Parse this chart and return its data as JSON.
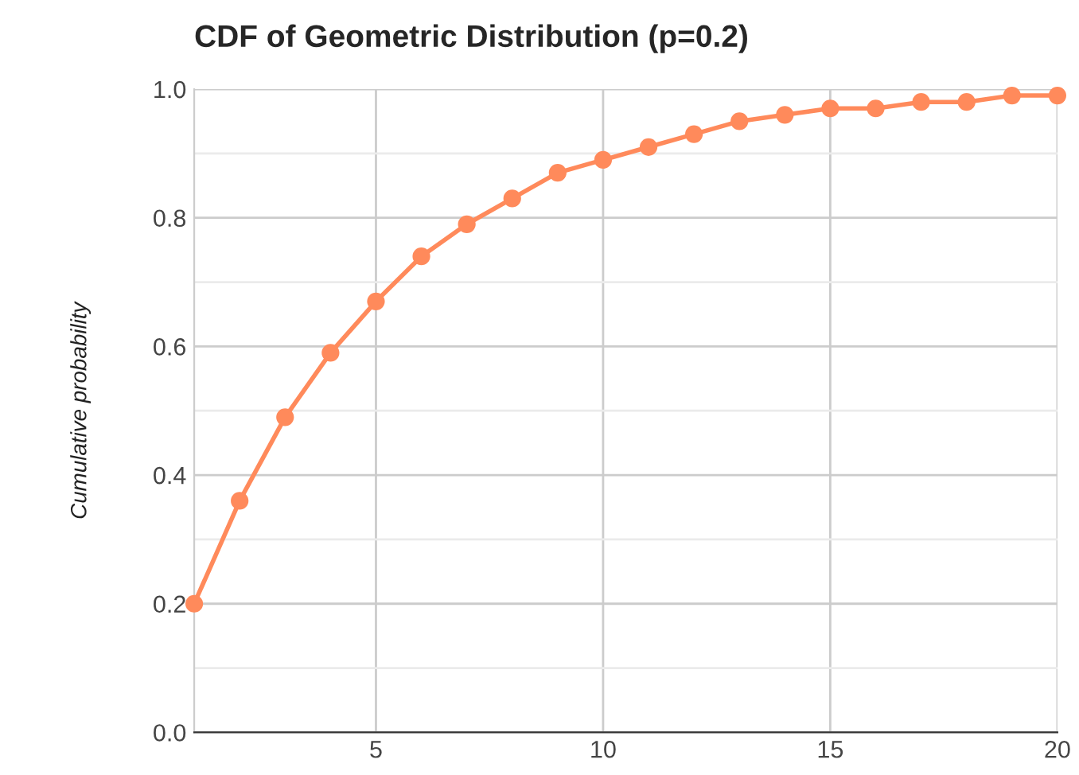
{
  "chart_data": {
    "type": "line",
    "title": "CDF of Geometric Distribution (p=0.2)",
    "ylabel": "Cumulative probability",
    "x": [
      1,
      2,
      3,
      4,
      5,
      6,
      7,
      8,
      9,
      10,
      11,
      12,
      13,
      14,
      15,
      16,
      17,
      18,
      19,
      20
    ],
    "series": [
      {
        "color": "#ff8a5b",
        "values": [
          0.2,
          0.36,
          0.49,
          0.59,
          0.67,
          0.74,
          0.79,
          0.83,
          0.87,
          0.89,
          0.91,
          0.93,
          0.95,
          0.96,
          0.97,
          0.97,
          0.98,
          0.98,
          0.99,
          0.99
        ]
      }
    ],
    "xlim": [
      1,
      20
    ],
    "xticks": [
      5,
      10,
      15,
      20
    ],
    "ylim": [
      0,
      1
    ],
    "yticks": [
      {
        "value": 0,
        "label": "0.0"
      },
      {
        "value": 0.1,
        "label": null
      },
      0.2,
      {
        "value": 0.3,
        "label": null
      },
      0.4,
      {
        "value": 0.5,
        "label": null
      },
      0.6,
      {
        "value": 0.7,
        "label": null
      },
      0.8,
      {
        "value": 0.9,
        "label": null
      },
      {
        "value": 1,
        "label": "1.0"
      }
    ],
    "grid": true,
    "marker": "circle",
    "line_style": "solid",
    "legend": false
  }
}
